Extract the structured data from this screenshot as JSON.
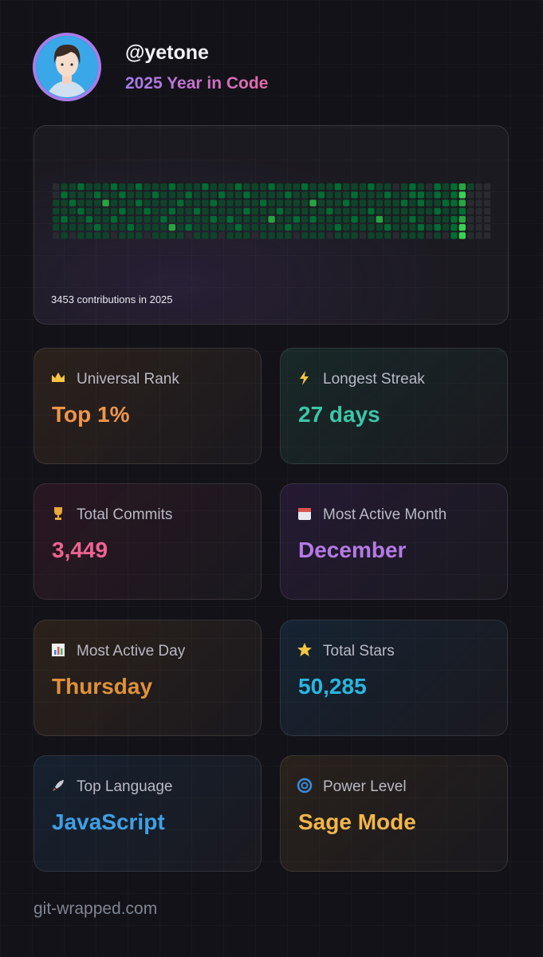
{
  "header": {
    "username": "@yetone",
    "subtitle": "2025 Year in Code"
  },
  "contributions": {
    "caption": "3453 contributions in 2025",
    "levels": [
      [
        0,
        0,
        1,
        1,
        1,
        1,
        0
      ],
      [
        1,
        2,
        1,
        1,
        2,
        1,
        1
      ],
      [
        1,
        1,
        2,
        1,
        1,
        1,
        0
      ],
      [
        2,
        1,
        1,
        2,
        1,
        1,
        1
      ],
      [
        1,
        1,
        1,
        1,
        2,
        1,
        1
      ],
      [
        1,
        2,
        1,
        1,
        1,
        2,
        1
      ],
      [
        1,
        1,
        3,
        1,
        1,
        1,
        1
      ],
      [
        2,
        1,
        1,
        1,
        2,
        1,
        0
      ],
      [
        1,
        2,
        1,
        2,
        1,
        1,
        1
      ],
      [
        1,
        1,
        1,
        1,
        1,
        2,
        1
      ],
      [
        2,
        1,
        2,
        1,
        1,
        1,
        1
      ],
      [
        1,
        1,
        1,
        2,
        1,
        1,
        0
      ],
      [
        1,
        2,
        1,
        1,
        1,
        1,
        1
      ],
      [
        1,
        1,
        1,
        1,
        2,
        1,
        1
      ],
      [
        2,
        1,
        1,
        2,
        1,
        3,
        1
      ],
      [
        1,
        1,
        2,
        1,
        1,
        1,
        1
      ],
      [
        1,
        2,
        1,
        1,
        1,
        2,
        0
      ],
      [
        1,
        1,
        1,
        2,
        1,
        1,
        1
      ],
      [
        2,
        1,
        1,
        1,
        1,
        1,
        1
      ],
      [
        1,
        1,
        2,
        1,
        2,
        1,
        1
      ],
      [
        1,
        2,
        1,
        1,
        1,
        1,
        0
      ],
      [
        1,
        1,
        1,
        1,
        2,
        1,
        1
      ],
      [
        2,
        1,
        1,
        1,
        1,
        2,
        1
      ],
      [
        1,
        2,
        1,
        2,
        1,
        1,
        1
      ],
      [
        1,
        1,
        1,
        1,
        1,
        1,
        0
      ],
      [
        1,
        1,
        2,
        1,
        1,
        1,
        1
      ],
      [
        2,
        1,
        1,
        1,
        3,
        1,
        1
      ],
      [
        1,
        1,
        1,
        2,
        1,
        1,
        1
      ],
      [
        1,
        2,
        1,
        1,
        1,
        2,
        1
      ],
      [
        1,
        1,
        1,
        1,
        2,
        1,
        0
      ],
      [
        2,
        1,
        1,
        1,
        1,
        1,
        1
      ],
      [
        1,
        1,
        3,
        1,
        2,
        1,
        1
      ],
      [
        1,
        2,
        1,
        1,
        1,
        1,
        1
      ],
      [
        1,
        1,
        1,
        2,
        1,
        1,
        0
      ],
      [
        2,
        1,
        1,
        1,
        1,
        2,
        1
      ],
      [
        1,
        1,
        2,
        1,
        1,
        1,
        1
      ],
      [
        1,
        2,
        1,
        1,
        2,
        1,
        1
      ],
      [
        1,
        1,
        1,
        1,
        1,
        1,
        0
      ],
      [
        2,
        1,
        1,
        2,
        1,
        1,
        1
      ],
      [
        1,
        1,
        1,
        1,
        3,
        1,
        1
      ],
      [
        1,
        2,
        1,
        1,
        1,
        2,
        1
      ],
      [
        0,
        1,
        1,
        1,
        1,
        1,
        0
      ],
      [
        1,
        1,
        2,
        1,
        1,
        1,
        1
      ],
      [
        2,
        2,
        1,
        1,
        2,
        1,
        1
      ],
      [
        1,
        2,
        2,
        1,
        1,
        2,
        1
      ],
      [
        0,
        1,
        1,
        1,
        0,
        1,
        0
      ],
      [
        2,
        2,
        1,
        2,
        1,
        2,
        1
      ],
      [
        1,
        1,
        2,
        1,
        1,
        1,
        0
      ],
      [
        2,
        2,
        2,
        1,
        2,
        2,
        2
      ],
      [
        3,
        4,
        3,
        2,
        3,
        4,
        4
      ],
      [
        1,
        0,
        0,
        0,
        0,
        0,
        0
      ],
      [
        0,
        0,
        0,
        0,
        0,
        0,
        0
      ],
      [
        0,
        0,
        0,
        0,
        0,
        0,
        0
      ]
    ]
  },
  "stats": [
    {
      "label": "Universal Rank",
      "value": "Top 1%"
    },
    {
      "label": "Longest Streak",
      "value": "27 days"
    },
    {
      "label": "Total Commits",
      "value": "3,449"
    },
    {
      "label": "Most Active Month",
      "value": "December"
    },
    {
      "label": "Most Active Day",
      "value": "Thursday"
    },
    {
      "label": "Total Stars",
      "value": "50,285"
    },
    {
      "label": "Top Language",
      "value": "JavaScript"
    },
    {
      "label": "Power Level",
      "value": "Sage Mode"
    }
  ],
  "footer": "git-wrapped.com"
}
